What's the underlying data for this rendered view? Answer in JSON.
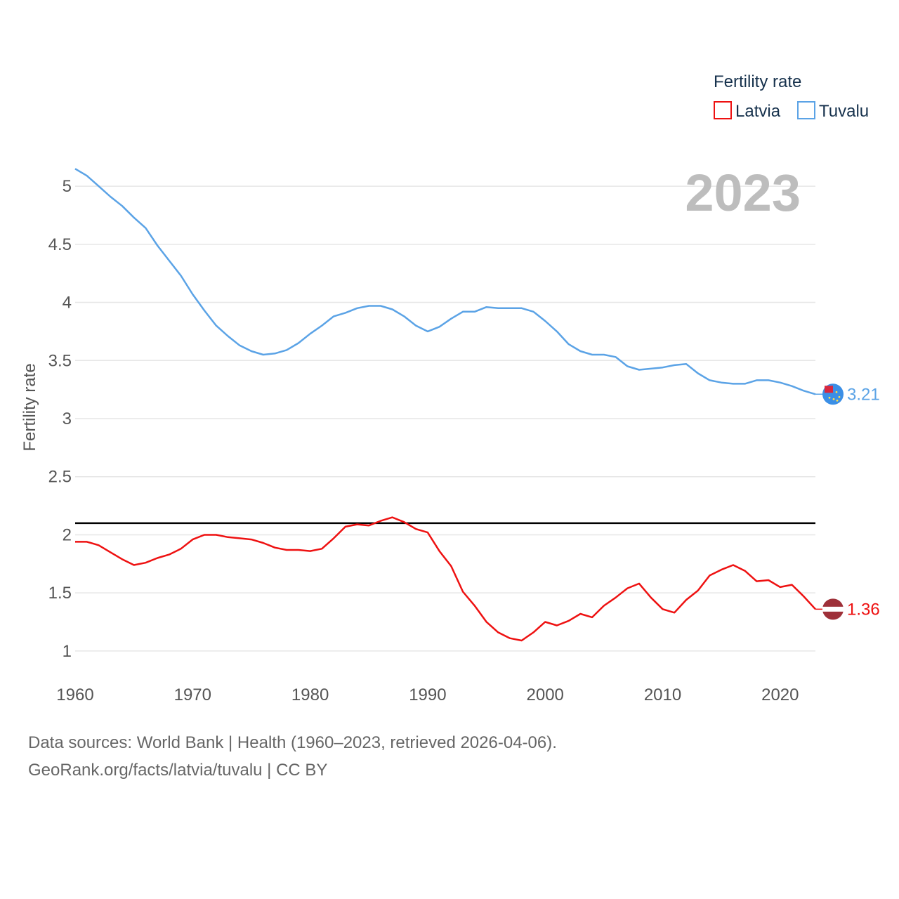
{
  "chart_data": {
    "type": "line",
    "title": "",
    "year_display": "2023",
    "ylabel": "Fertility rate",
    "xlabel": "",
    "xlim": [
      1960,
      2023
    ],
    "ylim": [
      0.8,
      5.2
    ],
    "x_ticks": [
      1960,
      1970,
      1980,
      1990,
      2000,
      2010,
      2020
    ],
    "y_ticks": [
      {
        "value": 1,
        "label": "1"
      },
      {
        "value": 1.5,
        "label": "1.5"
      },
      {
        "value": 2,
        "label": "2"
      },
      {
        "value": 2.5,
        "label": "2.5"
      },
      {
        "value": 3,
        "label": "3"
      },
      {
        "value": 3.5,
        "label": "3.5"
      },
      {
        "value": 4,
        "label": "4"
      },
      {
        "value": 4.5,
        "label": "4.5"
      },
      {
        "value": 5,
        "label": "5"
      }
    ],
    "grid": true,
    "reference_line": {
      "value": 2.1,
      "color": "#000000"
    },
    "legend": {
      "title": "Fertility rate",
      "position": "top-right"
    },
    "x": [
      1960,
      1961,
      1962,
      1963,
      1964,
      1965,
      1966,
      1967,
      1968,
      1969,
      1970,
      1971,
      1972,
      1973,
      1974,
      1975,
      1976,
      1977,
      1978,
      1979,
      1980,
      1981,
      1982,
      1983,
      1984,
      1985,
      1986,
      1987,
      1988,
      1989,
      1990,
      1991,
      1992,
      1993,
      1994,
      1995,
      1996,
      1997,
      1998,
      1999,
      2000,
      2001,
      2002,
      2003,
      2004,
      2005,
      2006,
      2007,
      2008,
      2009,
      2010,
      2011,
      2012,
      2013,
      2014,
      2015,
      2016,
      2017,
      2018,
      2019,
      2020,
      2021,
      2022,
      2023
    ],
    "series": [
      {
        "name": "Latvia",
        "color": "#ee1111",
        "flag_colors": [
          "#9e3039",
          "#ffffff"
        ],
        "end_label": "1.36",
        "values": [
          1.94,
          1.94,
          1.91,
          1.85,
          1.79,
          1.74,
          1.76,
          1.8,
          1.83,
          1.88,
          1.96,
          2.0,
          2.0,
          1.98,
          1.97,
          1.96,
          1.93,
          1.89,
          1.87,
          1.87,
          1.86,
          1.88,
          1.97,
          2.07,
          2.09,
          2.08,
          2.12,
          2.15,
          2.11,
          2.05,
          2.02,
          1.86,
          1.73,
          1.51,
          1.39,
          1.25,
          1.16,
          1.11,
          1.09,
          1.16,
          1.25,
          1.22,
          1.26,
          1.32,
          1.29,
          1.39,
          1.46,
          1.54,
          1.58,
          1.46,
          1.36,
          1.33,
          1.44,
          1.52,
          1.65,
          1.7,
          1.74,
          1.69,
          1.6,
          1.61,
          1.55,
          1.57,
          1.47,
          1.36
        ]
      },
      {
        "name": "Tuvalu",
        "color": "#5ba3e6",
        "flag_colors": [
          "#3b8fe6",
          "#d9283e"
        ],
        "end_label": "3.21",
        "values": [
          5.15,
          5.09,
          5.0,
          4.91,
          4.83,
          4.73,
          4.64,
          4.49,
          4.36,
          4.23,
          4.07,
          3.93,
          3.8,
          3.71,
          3.63,
          3.58,
          3.55,
          3.56,
          3.59,
          3.65,
          3.73,
          3.8,
          3.88,
          3.91,
          3.95,
          3.97,
          3.97,
          3.94,
          3.88,
          3.8,
          3.75,
          3.79,
          3.86,
          3.92,
          3.92,
          3.96,
          3.95,
          3.95,
          3.95,
          3.92,
          3.84,
          3.75,
          3.64,
          3.58,
          3.55,
          3.55,
          3.53,
          3.45,
          3.42,
          3.43,
          3.44,
          3.46,
          3.47,
          3.39,
          3.33,
          3.31,
          3.3,
          3.3,
          3.33,
          3.33,
          3.31,
          3.28,
          3.24,
          3.21
        ]
      }
    ]
  },
  "footer": {
    "sources": "Data sources: World Bank | Health (1960–2023, retrieved 2026-04-06).",
    "credit": "GeoRank.org/facts/latvia/tuvalu | CC BY"
  }
}
